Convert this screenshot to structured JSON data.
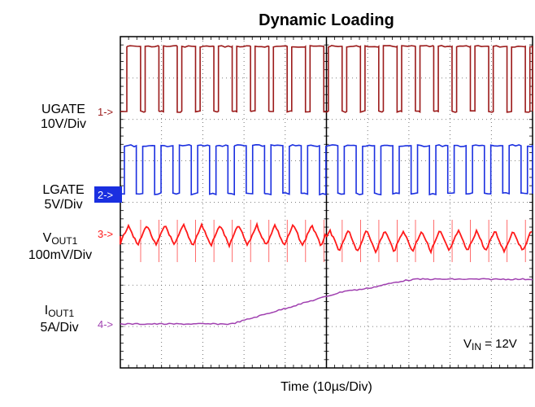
{
  "chart_data": {
    "type": "line",
    "title": "Dynamic Loading",
    "xlabel": "Time (10µs/Div)",
    "annotation": {
      "main": "V",
      "sub": "IN",
      "rest": " = 12V"
    },
    "grid": true,
    "x_divisions": 10,
    "y_divisions": 8,
    "colors": {
      "ugate": "#9b1a1a",
      "lgate": "#1a2fe0",
      "vout": "#ff1a1a",
      "iout": "#a040b0",
      "marker_bg": "#1a2fe0"
    },
    "channels": [
      {
        "id": "ugate",
        "marker": "1->",
        "label_main": "UGATE",
        "label_sub": "",
        "label_scale": "10V/Div",
        "waveform": "pwm",
        "high": 10,
        "low": 0,
        "unit": "V"
      },
      {
        "id": "lgate",
        "marker": "2->",
        "label_main": "LGATE",
        "label_sub": "",
        "label_scale": "5V/Div",
        "waveform": "pwm",
        "high": 5,
        "low": 0,
        "unit": "V"
      },
      {
        "id": "vout",
        "marker": "3->",
        "label_main": "V",
        "label_sub": "OUT1",
        "label_scale": "100mV/Div",
        "waveform": "ripple",
        "unit": "mV"
      },
      {
        "id": "iout",
        "marker": "4->",
        "label_main": "I",
        "label_sub": "OUT1",
        "label_scale": "5A/Div",
        "waveform": "ramp",
        "points_div": [
          [
            0,
            0
          ],
          [
            2.7,
            0
          ],
          [
            5.5,
            0.75
          ],
          [
            7.3,
            1.0
          ],
          [
            10,
            1.0
          ]
        ],
        "unit": "A"
      }
    ]
  }
}
